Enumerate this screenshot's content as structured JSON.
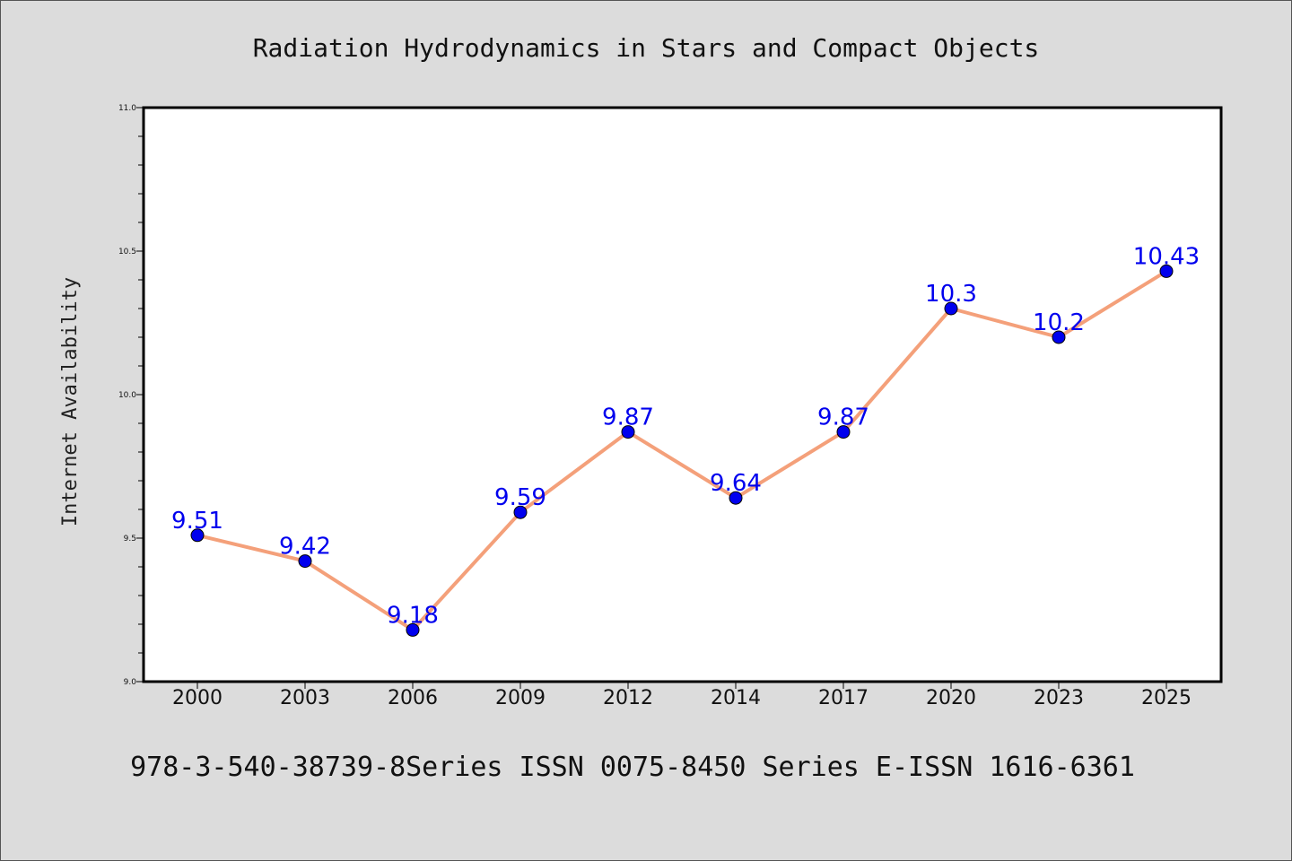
{
  "chart_data": {
    "type": "line",
    "title": "Radiation Hydrodynamics in Stars and Compact Objects",
    "xlabel": "",
    "ylabel": "Internet Availability",
    "categories": [
      "2000",
      "2003",
      "2006",
      "2009",
      "2012",
      "2014",
      "2017",
      "2020",
      "2023",
      "2025"
    ],
    "values": [
      9.51,
      9.42,
      9.18,
      9.59,
      9.87,
      9.64,
      9.87,
      10.3,
      10.2,
      10.43
    ],
    "data_labels": [
      "9.51",
      "9.42",
      "9.18",
      "9.59",
      "9.87",
      "9.64",
      "9.87",
      "10.3",
      "10.2",
      "10.43"
    ],
    "ylim": [
      9.0,
      11.0
    ],
    "yticks": [
      "9.0",
      "9.5",
      "10.0",
      "10.5",
      "11.0"
    ],
    "grid": false,
    "legend": "none",
    "line_color": "#f4a07a",
    "marker_color": "#0000ee",
    "label_color": "#0000ee",
    "footer": "978-3-540-38739-8Series ISSN 0075-8450 Series E-ISSN 1616-6361"
  }
}
